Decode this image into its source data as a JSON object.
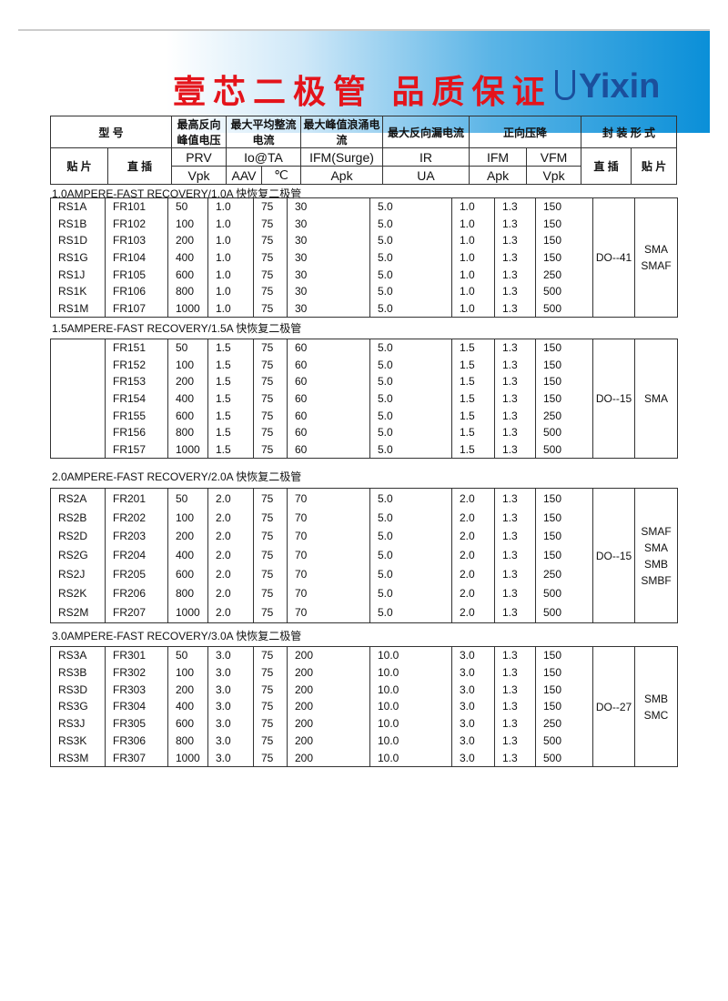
{
  "header": {
    "slogan": "壹芯二极管 品质保证",
    "brand": "Yixin"
  },
  "columns": {
    "model": "型 号",
    "prv_cn": "最高反向峰值电压",
    "io_cn": "最大平均整流电流",
    "ifsm_cn": "最大峰值浪涌电流",
    "ir_cn": "最大反向漏电流",
    "vf_cn": "正向压降",
    "pkg_cn": "封 装 形 式",
    "smd": "贴 片",
    "dip": "直 插",
    "prv": "PRV",
    "io": "Io@TA",
    "ifsm": "IFM(Surge)",
    "ir": "IR",
    "ifm": "IFM",
    "vfm": "VFM",
    "pkg_dip": "直 插",
    "pkg_smd": "贴 片",
    "u_prv": "Vpk",
    "u_aav": "AAV",
    "u_c": "℃",
    "u_ifsm": "Apk",
    "u_ir": "UA",
    "u_ifm": "Apk",
    "u_vfm": "Vpk"
  },
  "sections": [
    {
      "title": "1.0AMPERE-FAST RECOVERY/1.0A 快恢复二极管",
      "pkg_dip": "DO--41",
      "pkg_smd": "SMA\nSMAF",
      "rows": [
        [
          "RS1A",
          "FR101",
          "50",
          "1.0",
          "75",
          "30",
          "5.0",
          "1.0",
          "1.3",
          "150"
        ],
        [
          "RS1B",
          "FR102",
          "100",
          "1.0",
          "75",
          "30",
          "5.0",
          "1.0",
          "1.3",
          "150"
        ],
        [
          "RS1D",
          "FR103",
          "200",
          "1.0",
          "75",
          "30",
          "5.0",
          "1.0",
          "1.3",
          "150"
        ],
        [
          "RS1G",
          "FR104",
          "400",
          "1.0",
          "75",
          "30",
          "5.0",
          "1.0",
          "1.3",
          "150"
        ],
        [
          "RS1J",
          "FR105",
          "600",
          "1.0",
          "75",
          "30",
          "5.0",
          "1.0",
          "1.3",
          "250"
        ],
        [
          "RS1K",
          "FR106",
          "800",
          "1.0",
          "75",
          "30",
          "5.0",
          "1.0",
          "1.3",
          "500"
        ],
        [
          "RS1M",
          "FR107",
          "1000",
          "1.0",
          "75",
          "30",
          "5.0",
          "1.0",
          "1.3",
          "500"
        ]
      ]
    },
    {
      "title": "1.5AMPERE-FAST RECOVERY/1.5A 快恢复二极管",
      "pkg_dip": "DO--15",
      "pkg_smd": "SMA",
      "rows": [
        [
          "",
          "FR151",
          "50",
          "1.5",
          "75",
          "60",
          "5.0",
          "1.5",
          "1.3",
          "150"
        ],
        [
          "",
          "FR152",
          "100",
          "1.5",
          "75",
          "60",
          "5.0",
          "1.5",
          "1.3",
          "150"
        ],
        [
          "",
          "FR153",
          "200",
          "1.5",
          "75",
          "60",
          "5.0",
          "1.5",
          "1.3",
          "150"
        ],
        [
          "",
          "FR154",
          "400",
          "1.5",
          "75",
          "60",
          "5.0",
          "1.5",
          "1.3",
          "150"
        ],
        [
          "",
          "FR155",
          "600",
          "1.5",
          "75",
          "60",
          "5.0",
          "1.5",
          "1.3",
          "250"
        ],
        [
          "",
          "FR156",
          "800",
          "1.5",
          "75",
          "60",
          "5.0",
          "1.5",
          "1.3",
          "500"
        ],
        [
          "",
          "FR157",
          "1000",
          "1.5",
          "75",
          "60",
          "5.0",
          "1.5",
          "1.3",
          "500"
        ]
      ]
    },
    {
      "title": "2.0AMPERE-FAST RECOVERY/2.0A 快恢复二极管",
      "pkg_dip": "DO--15",
      "pkg_smd": "SMAF\nSMA\nSMB\nSMBF",
      "rows": [
        [
          "RS2A",
          "FR201",
          "50",
          "2.0",
          "75",
          "70",
          "5.0",
          "2.0",
          "1.3",
          "150"
        ],
        [
          "RS2B",
          "FR202",
          "100",
          "2.0",
          "75",
          "70",
          "5.0",
          "2.0",
          "1.3",
          "150"
        ],
        [
          "RS2D",
          "FR203",
          "200",
          "2.0",
          "75",
          "70",
          "5.0",
          "2.0",
          "1.3",
          "150"
        ],
        [
          "RS2G",
          "FR204",
          "400",
          "2.0",
          "75",
          "70",
          "5.0",
          "2.0",
          "1.3",
          "150"
        ],
        [
          "RS2J",
          "FR205",
          "600",
          "2.0",
          "75",
          "70",
          "5.0",
          "2.0",
          "1.3",
          "250"
        ],
        [
          "RS2K",
          "FR206",
          "800",
          "2.0",
          "75",
          "70",
          "5.0",
          "2.0",
          "1.3",
          "500"
        ],
        [
          "RS2M",
          "FR207",
          "1000",
          "2.0",
          "75",
          "70",
          "5.0",
          "2.0",
          "1.3",
          "500"
        ]
      ]
    },
    {
      "title": "3.0AMPERE-FAST RECOVERY/3.0A 快恢复二极管",
      "pkg_dip": "DO--27",
      "pkg_smd": "SMB\nSMC",
      "rows": [
        [
          "RS3A",
          "FR301",
          "50",
          "3.0",
          "75",
          "200",
          "10.0",
          "3.0",
          "1.3",
          "150"
        ],
        [
          "RS3B",
          "FR302",
          "100",
          "3.0",
          "75",
          "200",
          "10.0",
          "3.0",
          "1.3",
          "150"
        ],
        [
          "RS3D",
          "FR303",
          "200",
          "3.0",
          "75",
          "200",
          "10.0",
          "3.0",
          "1.3",
          "150"
        ],
        [
          "RS3G",
          "FR304",
          "400",
          "3.0",
          "75",
          "200",
          "10.0",
          "3.0",
          "1.3",
          "150"
        ],
        [
          "RS3J",
          "FR305",
          "600",
          "3.0",
          "75",
          "200",
          "10.0",
          "3.0",
          "1.3",
          "250"
        ],
        [
          "RS3K",
          "FR306",
          "800",
          "3.0",
          "75",
          "200",
          "10.0",
          "3.0",
          "1.3",
          "500"
        ],
        [
          "RS3M",
          "FR307",
          "1000",
          "3.0",
          "75",
          "200",
          "10.0",
          "3.0",
          "1.3",
          "500"
        ]
      ]
    }
  ]
}
